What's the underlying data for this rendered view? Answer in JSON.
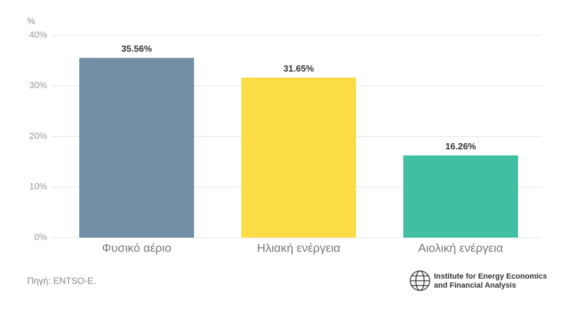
{
  "chart_data": {
    "type": "bar",
    "y_label": "%",
    "categories": [
      "Φυσικό αέριο",
      "Ηλιακή ενέργεια",
      "Αιολική ενέργεια"
    ],
    "values": [
      35.56,
      31.65,
      16.26
    ],
    "value_labels": [
      "35.56%",
      "31.65%",
      "16.26%"
    ],
    "colors": [
      "#718ea4",
      "#fcdc44",
      "#40bfa3"
    ],
    "ylim": [
      0,
      40
    ],
    "yticks": [
      {
        "value": 0,
        "label": "0%"
      },
      {
        "value": 10,
        "label": "10%"
      },
      {
        "value": 20,
        "label": "20%"
      },
      {
        "value": 30,
        "label": "30%"
      },
      {
        "value": 40,
        "label": "40%"
      }
    ],
    "grid": true,
    "source": "Πηγή: ENTSO-E.",
    "logo_text": [
      "Institute for Energy Economics",
      "and Financial Analysis"
    ]
  }
}
